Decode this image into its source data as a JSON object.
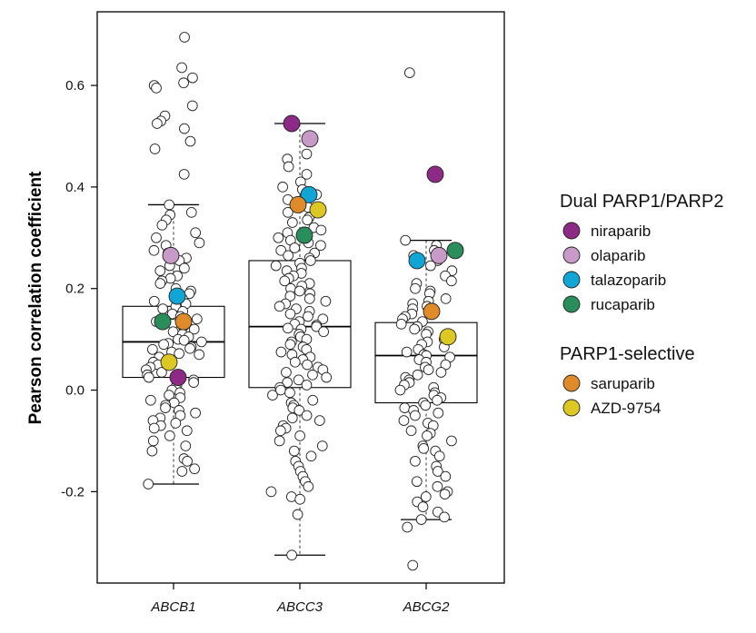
{
  "chart_data": {
    "type": "scatter",
    "ylabel": "Pearson correlation coefficient",
    "ylim": [
      -0.38,
      0.745
    ],
    "yticks": [
      -0.2,
      0.0,
      0.2,
      0.4,
      0.6
    ],
    "ytick_labels": [
      "-0.2",
      "0.0",
      "0.2",
      "0.4",
      "0.6"
    ],
    "categories": [
      "ABCB1",
      "ABCC3",
      "ABCG2"
    ],
    "boxplots": [
      {
        "category": "ABCB1",
        "q1": 0.025,
        "median": 0.095,
        "q3": 0.165,
        "whisker_low": -0.185,
        "whisker_high": 0.365
      },
      {
        "category": "ABCC3",
        "q1": 0.005,
        "median": 0.125,
        "q3": 0.255,
        "whisker_low": -0.325,
        "whisker_high": 0.525
      },
      {
        "category": "ABCG2",
        "q1": -0.025,
        "median": 0.068,
        "q3": 0.133,
        "whisker_low": -0.255,
        "whisker_high": 0.295
      }
    ],
    "legend": [
      {
        "group": "Dual PARP1/PARP2",
        "items": [
          {
            "name": "niraparib",
            "color": "#8c2a85"
          },
          {
            "name": "olaparib",
            "color": "#c79ac8"
          },
          {
            "name": "talazoparib",
            "color": "#10a5d4"
          },
          {
            "name": "rucaparib",
            "color": "#2a8e5c"
          }
        ]
      },
      {
        "group": "PARP1-selective",
        "items": [
          {
            "name": "saruparib",
            "color": "#e08b2a"
          },
          {
            "name": "AZD-9754",
            "color": "#ddc823"
          }
        ]
      }
    ],
    "highlighted_points": [
      {
        "category": "ABCB1",
        "drug": "olaparib",
        "y": 0.265,
        "jitter": -0.03
      },
      {
        "category": "ABCB1",
        "drug": "talazoparib",
        "y": 0.185,
        "jitter": 0.04
      },
      {
        "category": "ABCB1",
        "drug": "rucaparib",
        "y": 0.135,
        "jitter": -0.12
      },
      {
        "category": "ABCB1",
        "drug": "saruparib",
        "y": 0.135,
        "jitter": 0.11
      },
      {
        "category": "ABCB1",
        "drug": "AZD-9754",
        "y": 0.055,
        "jitter": -0.05
      },
      {
        "category": "ABCB1",
        "drug": "niraparib",
        "y": 0.025,
        "jitter": 0.05
      },
      {
        "category": "ABCC3",
        "drug": "niraparib",
        "y": 0.525,
        "jitter": -0.09
      },
      {
        "category": "ABCC3",
        "drug": "olaparib",
        "y": 0.495,
        "jitter": 0.11
      },
      {
        "category": "ABCC3",
        "drug": "talazoparib",
        "y": 0.385,
        "jitter": 0.1
      },
      {
        "category": "ABCC3",
        "drug": "saruparib",
        "y": 0.365,
        "jitter": -0.02
      },
      {
        "category": "ABCC3",
        "drug": "AZD-9754",
        "y": 0.355,
        "jitter": 0.2
      },
      {
        "category": "ABCC3",
        "drug": "rucaparib",
        "y": 0.305,
        "jitter": 0.05
      },
      {
        "category": "ABCG2",
        "drug": "niraparib",
        "y": 0.425,
        "jitter": 0.1
      },
      {
        "category": "ABCG2",
        "drug": "rucaparib",
        "y": 0.275,
        "jitter": 0.32
      },
      {
        "category": "ABCG2",
        "drug": "olaparib",
        "y": 0.265,
        "jitter": 0.14
      },
      {
        "category": "ABCG2",
        "drug": "talazoparib",
        "y": 0.255,
        "jitter": -0.1
      },
      {
        "category": "ABCG2",
        "drug": "saruparib",
        "y": 0.155,
        "jitter": 0.06
      },
      {
        "category": "ABCG2",
        "drug": "AZD-9754",
        "y": 0.105,
        "jitter": 0.24
      }
    ],
    "points": {
      "ABCB1": [
        0.695,
        0.635,
        0.615,
        0.605,
        0.6,
        0.595,
        0.56,
        0.54,
        0.53,
        0.525,
        0.515,
        0.49,
        0.475,
        0.425,
        0.365,
        0.35,
        0.345,
        0.335,
        0.325,
        0.31,
        0.3,
        0.29,
        0.285,
        0.275,
        0.27,
        0.26,
        0.255,
        0.245,
        0.24,
        0.235,
        0.225,
        0.22,
        0.215,
        0.21,
        0.2,
        0.195,
        0.19,
        0.18,
        0.175,
        0.17,
        0.165,
        0.16,
        0.155,
        0.15,
        0.145,
        0.14,
        0.135,
        0.13,
        0.125,
        0.12,
        0.115,
        0.11,
        0.105,
        0.1,
        0.098,
        0.095,
        0.092,
        0.09,
        0.085,
        0.082,
        0.08,
        0.075,
        0.072,
        0.07,
        0.065,
        0.06,
        0.055,
        0.05,
        0.045,
        0.04,
        0.035,
        0.03,
        0.025,
        0.02,
        0.015,
        0.01,
        0.005,
        0.0,
        -0.005,
        -0.01,
        -0.015,
        -0.02,
        -0.025,
        -0.03,
        -0.035,
        -0.04,
        -0.045,
        -0.05,
        -0.055,
        -0.06,
        -0.065,
        -0.07,
        -0.075,
        -0.08,
        -0.09,
        -0.1,
        -0.11,
        -0.12,
        -0.135,
        -0.14,
        -0.155,
        -0.16,
        -0.185
      ],
      "ABCC3": [
        0.465,
        0.455,
        0.44,
        0.425,
        0.41,
        0.4,
        0.395,
        0.385,
        0.375,
        0.36,
        0.35,
        0.34,
        0.335,
        0.33,
        0.32,
        0.315,
        0.31,
        0.3,
        0.295,
        0.29,
        0.285,
        0.28,
        0.275,
        0.27,
        0.265,
        0.26,
        0.255,
        0.25,
        0.245,
        0.24,
        0.235,
        0.23,
        0.225,
        0.22,
        0.215,
        0.21,
        0.205,
        0.2,
        0.195,
        0.19,
        0.185,
        0.18,
        0.175,
        0.17,
        0.165,
        0.16,
        0.155,
        0.15,
        0.145,
        0.14,
        0.135,
        0.13,
        0.128,
        0.125,
        0.122,
        0.12,
        0.115,
        0.11,
        0.105,
        0.1,
        0.095,
        0.09,
        0.085,
        0.08,
        0.075,
        0.07,
        0.065,
        0.06,
        0.055,
        0.05,
        0.045,
        0.04,
        0.035,
        0.03,
        0.025,
        0.02,
        0.015,
        0.01,
        0.005,
        0.0,
        -0.005,
        -0.01,
        -0.02,
        -0.025,
        -0.03,
        -0.035,
        -0.04,
        -0.05,
        -0.055,
        -0.06,
        -0.07,
        -0.075,
        -0.08,
        -0.09,
        -0.1,
        -0.11,
        -0.12,
        -0.13,
        -0.14,
        -0.15,
        -0.16,
        -0.17,
        -0.18,
        -0.19,
        -0.2,
        -0.21,
        -0.215,
        -0.245,
        -0.325
      ],
      "ABCG2": [
        0.625,
        0.295,
        0.285,
        0.275,
        0.265,
        0.255,
        0.245,
        0.235,
        0.225,
        0.215,
        0.21,
        0.2,
        0.195,
        0.19,
        0.18,
        0.175,
        0.17,
        0.165,
        0.16,
        0.15,
        0.145,
        0.14,
        0.135,
        0.13,
        0.125,
        0.12,
        0.115,
        0.11,
        0.1,
        0.095,
        0.09,
        0.085,
        0.08,
        0.075,
        0.07,
        0.068,
        0.065,
        0.06,
        0.055,
        0.05,
        0.045,
        0.04,
        0.035,
        0.03,
        0.025,
        0.02,
        0.015,
        0.01,
        0.005,
        0.0,
        -0.005,
        -0.01,
        -0.015,
        -0.02,
        -0.025,
        -0.03,
        -0.035,
        -0.04,
        -0.045,
        -0.05,
        -0.06,
        -0.065,
        -0.07,
        -0.08,
        -0.085,
        -0.09,
        -0.1,
        -0.11,
        -0.115,
        -0.12,
        -0.13,
        -0.14,
        -0.15,
        -0.16,
        -0.17,
        -0.18,
        -0.19,
        -0.2,
        -0.205,
        -0.21,
        -0.22,
        -0.23,
        -0.24,
        -0.25,
        -0.255,
        -0.27,
        -0.345
      ]
    }
  }
}
